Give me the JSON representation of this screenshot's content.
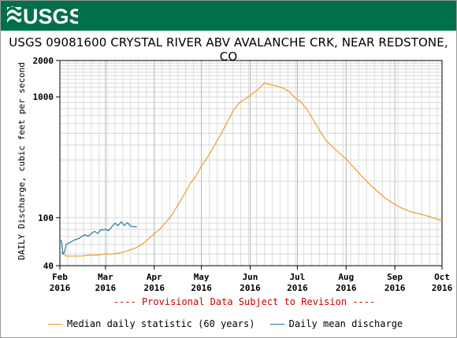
{
  "header": {
    "logo_text": "USGS",
    "banner_color": "#00704a"
  },
  "chart_data": {
    "type": "line",
    "title": "USGS 09081600 CRYSTAL RIVER ABV AVALANCHE CRK, NEAR REDSTONE, CO",
    "ylabel": "DAILY Discharge, cubic feet per second",
    "yscale": "log",
    "ylim": [
      40,
      2000
    ],
    "y_ticks": [
      {
        "value": 40,
        "label": "40"
      },
      {
        "value": 100,
        "label": "100"
      },
      {
        "value": 1000,
        "label": "1000"
      },
      {
        "value": 2000,
        "label": "2000"
      }
    ],
    "xlim": [
      "2016-02-01",
      "2016-10-01"
    ],
    "x_ticks": [
      {
        "date": "2016-02-01",
        "month": "Feb",
        "year": "2016"
      },
      {
        "date": "2016-03-01",
        "month": "Mar",
        "year": "2016"
      },
      {
        "date": "2016-04-01",
        "month": "Apr",
        "year": "2016"
      },
      {
        "date": "2016-05-01",
        "month": "May",
        "year": "2016"
      },
      {
        "date": "2016-06-01",
        "month": "Jun",
        "year": "2016"
      },
      {
        "date": "2016-07-01",
        "month": "Jul",
        "year": "2016"
      },
      {
        "date": "2016-08-01",
        "month": "Aug",
        "year": "2016"
      },
      {
        "date": "2016-09-01",
        "month": "Sep",
        "year": "2016"
      },
      {
        "date": "2016-10-01",
        "month": "Oct",
        "year": "2016"
      }
    ],
    "grid": true,
    "legend_position": "bottom",
    "series": [
      {
        "name": "Median daily statistic (60 years)",
        "color": "#e8a020",
        "points": [
          [
            "2016-02-01",
            53
          ],
          [
            "2016-02-05",
            48
          ],
          [
            "2016-02-10",
            48
          ],
          [
            "2016-02-15",
            48
          ],
          [
            "2016-02-20",
            49
          ],
          [
            "2016-02-25",
            49
          ],
          [
            "2016-03-01",
            50
          ],
          [
            "2016-03-05",
            50
          ],
          [
            "2016-03-10",
            51
          ],
          [
            "2016-03-15",
            53
          ],
          [
            "2016-03-20",
            56
          ],
          [
            "2016-03-25",
            61
          ],
          [
            "2016-03-30",
            70
          ],
          [
            "2016-04-04",
            79
          ],
          [
            "2016-04-08",
            90
          ],
          [
            "2016-04-12",
            104
          ],
          [
            "2016-04-16",
            127
          ],
          [
            "2016-04-20",
            155
          ],
          [
            "2016-04-24",
            193
          ],
          [
            "2016-04-27",
            216
          ],
          [
            "2016-05-01",
            267
          ],
          [
            "2016-05-05",
            318
          ],
          [
            "2016-05-09",
            390
          ],
          [
            "2016-05-13",
            480
          ],
          [
            "2016-05-17",
            605
          ],
          [
            "2016-05-21",
            760
          ],
          [
            "2016-05-25",
            890
          ],
          [
            "2016-05-29",
            965
          ],
          [
            "2016-06-02",
            1050
          ],
          [
            "2016-06-06",
            1150
          ],
          [
            "2016-06-10",
            1300
          ],
          [
            "2016-06-13",
            1270
          ],
          [
            "2016-06-18",
            1230
          ],
          [
            "2016-06-22",
            1180
          ],
          [
            "2016-06-26",
            1100
          ],
          [
            "2016-06-30",
            970
          ],
          [
            "2016-07-03",
            915
          ],
          [
            "2016-07-07",
            790
          ],
          [
            "2016-07-11",
            650
          ],
          [
            "2016-07-15",
            530
          ],
          [
            "2016-07-19",
            440
          ],
          [
            "2016-07-23",
            390
          ],
          [
            "2016-07-27",
            350
          ],
          [
            "2016-08-01",
            305
          ],
          [
            "2016-08-06",
            260
          ],
          [
            "2016-08-11",
            220
          ],
          [
            "2016-08-16",
            189
          ],
          [
            "2016-08-21",
            165
          ],
          [
            "2016-08-26",
            145
          ],
          [
            "2016-09-01",
            129
          ],
          [
            "2016-09-06",
            119
          ],
          [
            "2016-09-11",
            112
          ],
          [
            "2016-09-16",
            108
          ],
          [
            "2016-09-21",
            104
          ],
          [
            "2016-09-26",
            99
          ],
          [
            "2016-10-01",
            94
          ]
        ]
      },
      {
        "name": "Daily mean discharge",
        "color": "#1f78a8",
        "points": [
          [
            "2016-02-01",
            66
          ],
          [
            "2016-02-02",
            64
          ],
          [
            "2016-02-03",
            50
          ],
          [
            "2016-02-04",
            52
          ],
          [
            "2016-02-05",
            60
          ],
          [
            "2016-02-07",
            62
          ],
          [
            "2016-02-09",
            64
          ],
          [
            "2016-02-11",
            66
          ],
          [
            "2016-02-13",
            67
          ],
          [
            "2016-02-15",
            70
          ],
          [
            "2016-02-17",
            72
          ],
          [
            "2016-02-19",
            70
          ],
          [
            "2016-02-21",
            74
          ],
          [
            "2016-02-23",
            77
          ],
          [
            "2016-02-25",
            74
          ],
          [
            "2016-02-27",
            79
          ],
          [
            "2016-03-01",
            80
          ],
          [
            "2016-03-03",
            78
          ],
          [
            "2016-03-05",
            84
          ],
          [
            "2016-03-07",
            90
          ],
          [
            "2016-03-09",
            86
          ],
          [
            "2016-03-11",
            92
          ],
          [
            "2016-03-13",
            86
          ],
          [
            "2016-03-15",
            91
          ],
          [
            "2016-03-17",
            85
          ],
          [
            "2016-03-19",
            84
          ],
          [
            "2016-03-21",
            84
          ]
        ]
      }
    ],
    "annotation": "---- Provisional Data Subject to Revision ----"
  }
}
